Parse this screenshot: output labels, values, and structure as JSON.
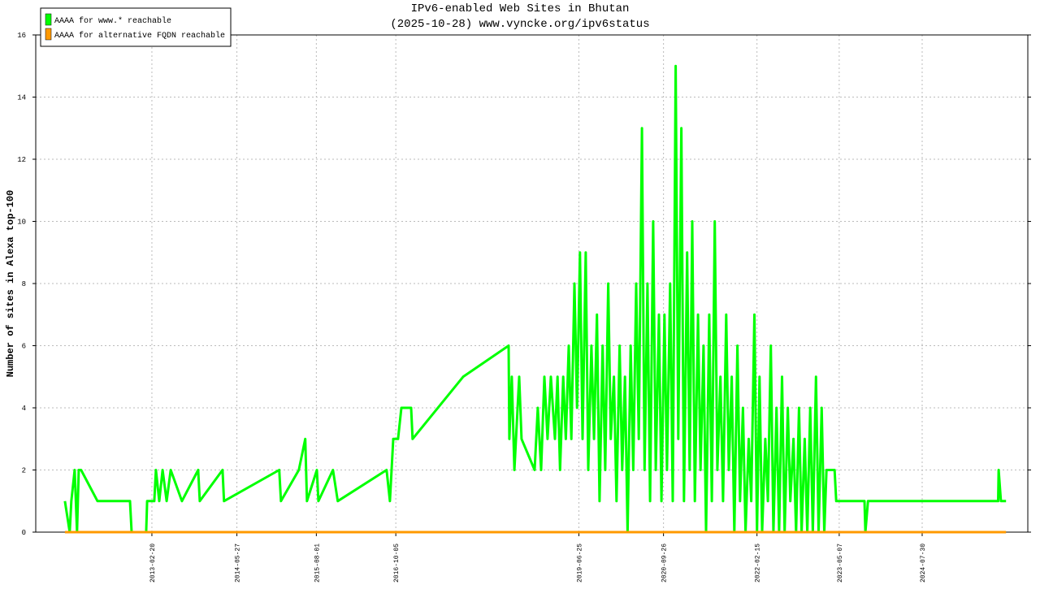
{
  "chart_data": {
    "type": "line",
    "title": "IPv6-enabled Web Sites in Bhutan",
    "subtitle": "(2025-10-28) www.vyncke.org/ipv6status",
    "y_label": "Number of sites in Alexa top-100",
    "legend_position": "upper left",
    "grid": true,
    "xlim": [
      "2011-06-01",
      "2026-02-23"
    ],
    "xticks": [
      "2013-02-20",
      "2014-05-27",
      "2015-08-01",
      "2016-10-05",
      "2019-06-25",
      "2020-09-26",
      "2022-02-15",
      "2023-05-07",
      "2024-07-30"
    ],
    "ylim": [
      0,
      16
    ],
    "yticks": [
      0,
      2,
      4,
      6,
      8,
      10,
      12,
      14,
      16
    ],
    "series": [
      {
        "name": "AAAA for www.* reachable",
        "color": "#00ff00",
        "x": [
          "2011-11-06",
          "2011-12-02",
          "2011-12-11",
          "2011-12-29",
          "2012-01-11",
          "2012-01-20",
          "2012-02-02",
          "2012-05-01",
          "2012-10-24",
          "2012-11-02",
          "2013-01-20",
          "2013-01-25",
          "2013-03-05",
          "2013-03-14",
          "2013-04-01",
          "2013-04-19",
          "2013-05-11",
          "2013-06-02",
          "2013-08-02",
          "2013-10-29",
          "2013-11-07",
          "2014-03-10",
          "2014-03-18",
          "2015-01-12",
          "2015-01-21",
          "2015-04-28",
          "2015-06-02",
          "2015-06-11",
          "2015-08-04",
          "2015-08-12",
          "2015-10-30",
          "2015-11-25",
          "2016-08-16",
          "2016-09-03",
          "2016-09-21",
          "2016-10-17",
          "2016-11-04",
          "2016-12-27",
          "2017-01-04",
          "2017-10-05",
          "2018-06-09",
          "2018-06-13",
          "2018-06-26",
          "2018-07-10",
          "2018-08-05",
          "2018-08-18",
          "2018-10-28",
          "2018-11-14",
          "2018-12-02",
          "2018-12-20",
          "2019-01-06",
          "2019-01-24",
          "2019-02-15",
          "2019-03-01",
          "2019-03-15",
          "2019-04-01",
          "2019-04-15",
          "2019-05-01",
          "2019-05-15",
          "2019-06-01",
          "2019-06-15",
          "2019-07-01",
          "2019-07-15",
          "2019-08-01",
          "2019-08-15",
          "2019-09-01",
          "2019-09-15",
          "2019-10-01",
          "2019-10-15",
          "2019-11-01",
          "2019-11-15",
          "2019-12-01",
          "2019-12-15",
          "2020-01-01",
          "2020-01-15",
          "2020-02-01",
          "2020-02-15",
          "2020-03-01",
          "2020-03-15",
          "2020-04-01",
          "2020-04-15",
          "2020-05-01",
          "2020-05-15",
          "2020-06-01",
          "2020-06-15",
          "2020-07-01",
          "2020-07-15",
          "2020-08-01",
          "2020-08-15",
          "2020-09-01",
          "2020-09-15",
          "2020-10-01",
          "2020-10-15",
          "2020-11-01",
          "2020-11-15",
          "2020-12-01",
          "2020-12-15",
          "2021-01-01",
          "2021-01-15",
          "2021-02-01",
          "2021-02-15",
          "2021-03-01",
          "2021-03-15",
          "2021-04-01",
          "2021-04-15",
          "2021-05-01",
          "2021-05-15",
          "2021-06-01",
          "2021-06-15",
          "2021-07-01",
          "2021-07-15",
          "2021-08-01",
          "2021-08-15",
          "2021-09-01",
          "2021-09-15",
          "2021-10-01",
          "2021-10-15",
          "2021-11-01",
          "2021-11-15",
          "2021-12-01",
          "2021-12-15",
          "2022-01-01",
          "2022-01-15",
          "2022-02-01",
          "2022-02-15",
          "2022-03-01",
          "2022-03-15",
          "2022-04-01",
          "2022-04-15",
          "2022-05-01",
          "2022-05-15",
          "2022-06-01",
          "2022-06-15",
          "2022-07-01",
          "2022-07-15",
          "2022-08-01",
          "2022-08-15",
          "2022-09-01",
          "2022-09-15",
          "2022-10-01",
          "2022-10-15",
          "2022-11-01",
          "2022-11-15",
          "2022-12-01",
          "2022-12-15",
          "2023-01-01",
          "2023-01-15",
          "2023-02-01",
          "2023-02-15",
          "2023-02-27",
          "2023-04-12",
          "2023-04-21",
          "2023-09-21",
          "2023-09-26",
          "2023-10-10",
          "2025-09-15",
          "2025-09-18",
          "2025-09-30",
          "2025-10-28"
        ],
        "values": [
          1,
          0,
          1,
          2,
          0,
          2,
          2,
          1,
          1,
          0,
          0,
          1,
          1,
          2,
          1,
          2,
          1,
          2,
          1,
          2,
          1,
          2,
          1,
          2,
          1,
          2,
          3,
          1,
          2,
          1,
          2,
          1,
          2,
          1,
          3,
          3,
          4,
          4,
          3,
          5,
          6,
          3,
          5,
          2,
          5,
          3,
          2,
          4,
          2,
          5,
          3,
          5,
          3,
          5,
          2,
          5,
          3,
          6,
          3,
          8,
          4,
          9,
          3,
          9,
          2,
          6,
          3,
          7,
          1,
          6,
          2,
          8,
          3,
          5,
          1,
          6,
          2,
          5,
          0,
          6,
          2,
          8,
          3,
          13,
          2,
          8,
          1,
          10,
          2,
          7,
          1,
          7,
          2,
          8,
          1,
          15,
          3,
          13,
          1,
          9,
          2,
          10,
          1,
          7,
          2,
          6,
          0,
          7,
          1,
          10,
          2,
          5,
          1,
          7,
          2,
          5,
          0,
          6,
          1,
          4,
          0,
          3,
          1,
          7,
          0,
          5,
          0,
          3,
          1,
          6,
          0,
          4,
          0,
          5,
          0,
          4,
          1,
          3,
          0,
          4,
          0,
          3,
          0,
          4,
          0,
          5,
          0,
          4,
          0,
          2,
          2,
          1,
          1,
          0,
          1,
          1,
          2,
          1,
          1
        ]
      },
      {
        "name": "AAAA for alternative FQDN reachable",
        "color": "#ff9900",
        "x": [
          "2011-11-06",
          "2025-10-28"
        ],
        "values": [
          0,
          0
        ]
      }
    ]
  }
}
